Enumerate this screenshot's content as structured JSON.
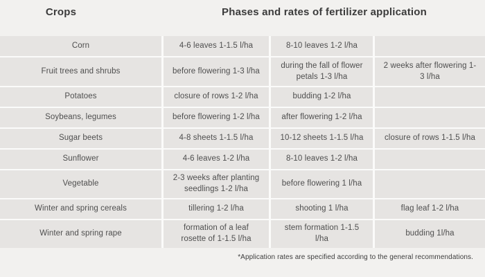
{
  "header": {
    "crops_label": "Crops",
    "phases_label": "Phases and rates of fertilizer application"
  },
  "table": {
    "rows": [
      {
        "crop": "Corn",
        "phase1": "4-6 leaves 1-1.5 l/ha",
        "phase2": "8-10 leaves 1-2 l/ha",
        "phase3": ""
      },
      {
        "crop": "Fruit trees and shrubs",
        "phase1": "before flowering 1-3 l/ha",
        "phase2": "during the fall of flower petals 1-3 l/ha",
        "phase3": "2 weeks after flowering 1-3 l/ha"
      },
      {
        "crop": "Potatoes",
        "phase1": "closure of rows 1-2 l/ha",
        "phase2": "budding 1-2 l/ha",
        "phase3": ""
      },
      {
        "crop": "Soybeans, legumes",
        "phase1": "before flowering 1-2 l/ha",
        "phase2": "after flowering 1-2 l/ha",
        "phase3": ""
      },
      {
        "crop": "Sugar beets",
        "phase1": "4-8 sheets 1-1.5 l/ha",
        "phase2": "10-12 sheets 1-1.5 l/ha",
        "phase3": "closure of rows 1-1.5 l/ha"
      },
      {
        "crop": "Sunflower",
        "phase1": "4-6 leaves 1-2 l/ha",
        "phase2": "8-10 leaves 1-2 l/ha",
        "phase3": ""
      },
      {
        "crop": "Vegetable",
        "phase1": "2-3 weeks after planting seedlings 1-2 l/ha",
        "phase2": "before flowering 1 l/ha",
        "phase3": ""
      },
      {
        "crop": "Winter and spring cereals",
        "phase1": "tillering 1-2 l/ha",
        "phase2": "shooting 1 l/ha",
        "phase3": "flag leaf 1-2 l/ha"
      },
      {
        "crop": "Winter and spring rape",
        "phase1": "formation of a leaf rosette of 1-1.5 l/ha",
        "phase2": "stem formation 1-1.5 l/ha",
        "phase3": "budding 1l/ha"
      }
    ]
  },
  "footnote": "*Application rates are specified according to the general recommendations.",
  "colors": {
    "page_bg": "#f2f1ef",
    "gap_bg": "#fbfbfa",
    "cell_bg": "#e6e4e2",
    "text": "#4e4e4e",
    "header_text": "#3b3b3b"
  }
}
